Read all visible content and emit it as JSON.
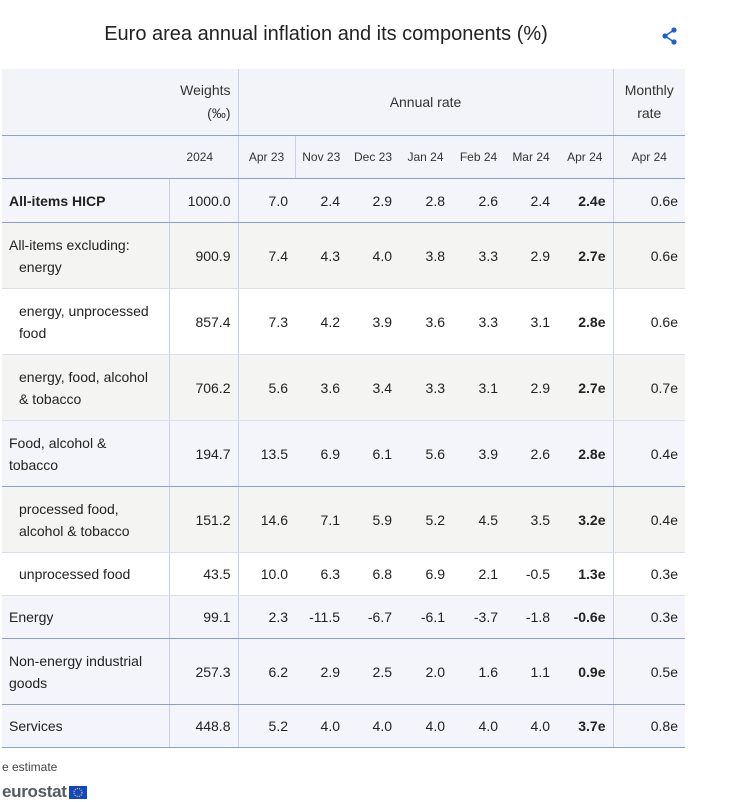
{
  "title": "Euro area annual inflation and its components (%)",
  "icons": {
    "share": "share-icon",
    "flag": "eu-flag-icon"
  },
  "colors": {
    "accent": "#1f5fd6",
    "header_bg": "#f2f4f9",
    "rule": "#8aa1c9"
  },
  "chart_data": {
    "type": "table",
    "title": "Euro area annual inflation and its components (%)",
    "header_groups": {
      "weights": "Weights",
      "weights_unit": "(‰)",
      "annual": "Annual rate",
      "monthly_1": "Monthly",
      "monthly_2": "rate"
    },
    "columns": [
      "2024",
      "Apr 23",
      "Nov 23",
      "Dec 23",
      "Jan 24",
      "Feb 24",
      "Mar 24",
      "Apr 24",
      "Apr 24"
    ],
    "rows": [
      {
        "label": "All-items HICP",
        "values": [
          "1000.0",
          "7.0",
          "2.4",
          "2.9",
          "2.8",
          "2.6",
          "2.4",
          "2.4e",
          "0.6e"
        ]
      },
      {
        "label_1": "All-items excluding:",
        "label_2": "energy",
        "values": [
          "900.9",
          "7.4",
          "4.3",
          "4.0",
          "3.8",
          "3.3",
          "2.9",
          "2.7e",
          "0.6e"
        ]
      },
      {
        "label_1": "energy, unprocessed",
        "label_2": "food",
        "values": [
          "857.4",
          "7.3",
          "4.2",
          "3.9",
          "3.6",
          "3.3",
          "3.1",
          "2.8e",
          "0.6e"
        ]
      },
      {
        "label_1": "energy, food, alcohol",
        "label_2": "& tobacco",
        "values": [
          "706.2",
          "5.6",
          "3.6",
          "3.4",
          "3.3",
          "3.1",
          "2.9",
          "2.7e",
          "0.7e"
        ]
      },
      {
        "label_1": "Food, alcohol &",
        "label_2": "tobacco",
        "values": [
          "194.7",
          "13.5",
          "6.9",
          "6.1",
          "5.6",
          "3.9",
          "2.6",
          "2.8e",
          "0.4e"
        ]
      },
      {
        "label_1": "processed food,",
        "label_2": "alcohol & tobacco",
        "values": [
          "151.2",
          "14.6",
          "7.1",
          "5.9",
          "5.2",
          "4.5",
          "3.5",
          "3.2e",
          "0.4e"
        ]
      },
      {
        "label": "unprocessed food",
        "values": [
          "43.5",
          "10.0",
          "6.3",
          "6.8",
          "6.9",
          "2.1",
          "-0.5",
          "1.3e",
          "0.3e"
        ]
      },
      {
        "label": "Energy",
        "values": [
          "99.1",
          "2.3",
          "-11.5",
          "-6.7",
          "-6.1",
          "-3.7",
          "-1.8",
          "-0.6e",
          "0.3e"
        ]
      },
      {
        "label_1": "Non-energy industrial",
        "label_2": "goods",
        "values": [
          "257.3",
          "6.2",
          "2.9",
          "2.5",
          "2.0",
          "1.6",
          "1.1",
          "0.9e",
          "0.5e"
        ]
      },
      {
        "label": "Services",
        "values": [
          "448.8",
          "5.2",
          "4.0",
          "4.0",
          "4.0",
          "4.0",
          "4.0",
          "3.7e",
          "0.8e"
        ]
      }
    ],
    "footnote": "e estimate"
  },
  "logo": {
    "text": "eurostat"
  }
}
